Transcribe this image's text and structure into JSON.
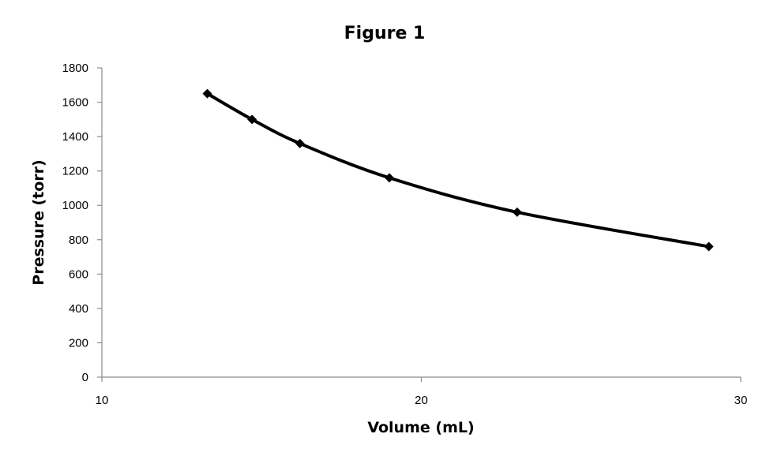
{
  "chart_data": {
    "type": "scatter",
    "title": "Figure 1",
    "xlabel": "Volume (mL)",
    "ylabel": "Pressure (torr)",
    "xlim": [
      10,
      30
    ],
    "ylim": [
      0,
      1800
    ],
    "xticks": [
      10,
      20,
      30
    ],
    "yticks": [
      0,
      200,
      400,
      600,
      800,
      1000,
      1200,
      1400,
      1600,
      1800
    ],
    "grid": false,
    "legend": "none",
    "smooth_line": true,
    "marker": "diamond",
    "series": [
      {
        "color": "#000000",
        "x": [
          13.3,
          14.7,
          16.2,
          19.0,
          23.0,
          29.0
        ],
        "y": [
          1650,
          1500,
          1360,
          1160,
          960,
          760
        ]
      }
    ]
  }
}
